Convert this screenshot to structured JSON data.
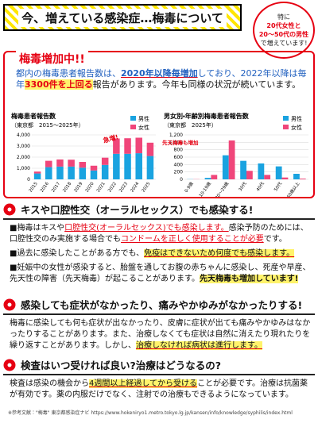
{
  "header": {
    "title": "今、増えている感染症…梅毒について",
    "badge": [
      "特に",
      "20代女性と",
      "20～50代の男性",
      "で増えています!"
    ]
  },
  "intro": {
    "heading": "梅毒増加中!!",
    "paragraph": [
      {
        "text": "都内の梅毒患者報告数は、",
        "mark": "blue"
      },
      {
        "text": "2020年以降毎増加",
        "mark": "blue b ul"
      },
      {
        "text": "しており、2022年以降は毎年",
        "mark": "blue"
      },
      {
        "text": "3300件を上回る",
        "mark": "red b hl"
      },
      {
        "text": "報告があります。"
      },
      {
        "text": "今年も同様の状況が続いています。"
      }
    ]
  },
  "chart_data": [
    {
      "type": "bar",
      "stacked": true,
      "title": "梅毒患者報告数",
      "subtitle": "（東京都　2015～2025年）",
      "categories": [
        "2015",
        "2016",
        "2017",
        "2018",
        "2019",
        "2020",
        "2021",
        "2022",
        "2023",
        "2024",
        "2025"
      ],
      "series": [
        {
          "name": "男性",
          "color": "#1aa3e0",
          "values": [
            530,
            1100,
            1150,
            1150,
            1050,
            800,
            1300,
            2300,
            2300,
            2350,
            2100
          ]
        },
        {
          "name": "女性",
          "color": "#f0467a",
          "values": [
            170,
            570,
            640,
            620,
            520,
            430,
            650,
            1380,
            1400,
            1400,
            1200
          ]
        }
      ],
      "ylim": [
        0,
        4000
      ],
      "yticks": [
        0,
        {
          "value": 1000,
          "label": "1,000"
        },
        {
          "value": 2000,
          "label": "2,000"
        },
        {
          "value": 3000,
          "label": "3,000"
        },
        {
          "value": 4000,
          "label": "4,000"
        }
      ],
      "grid": true,
      "legend": "upper right",
      "annotation": "急増!"
    },
    {
      "type": "bar",
      "stacked": false,
      "title": "男女別・年齢別梅毒患者報告数",
      "subtitle": "（東京都　2025年）",
      "categories": [
        "0-9歳",
        "10-19歳",
        "20～29歳",
        "30代",
        "40代",
        "50代",
        "60歳以上"
      ],
      "series": [
        {
          "name": "男性",
          "color": "#1aa3e0",
          "values": [
            5,
            40,
            650,
            500,
            430,
            350,
            150
          ]
        },
        {
          "name": "女性",
          "color": "#f0467a",
          "values": [
            5,
            120,
            1050,
            230,
            120,
            50,
            20
          ]
        }
      ],
      "ylim": [
        0,
        1200
      ],
      "yticks": [
        0,
        200,
        400,
        600,
        800,
        {
          "value": 1000,
          "label": "1,000"
        },
        {
          "value": 1200,
          "label": "1,200"
        }
      ],
      "grid": true,
      "legend": "upper right",
      "annotation": "先天梅毒も増加"
    }
  ],
  "sections": [
    {
      "heading": "キスや口腔性交（オーラルセックス）でも感染する!",
      "items": [
        [
          {
            "text": "梅毒はキスや"
          },
          {
            "text": "口腔性交(オーラルセックス)でも感染します。",
            "mark": "red ul"
          },
          {
            "text": "感染予防のためには、口腔性交のみ実施する場合でも"
          },
          {
            "text": "コンドームを正しく使用することが必要",
            "mark": "red ul"
          },
          {
            "text": "です。"
          }
        ],
        [
          {
            "text": "過去に感染したことがある方でも、"
          },
          {
            "text": "免疫はできないため何度でも感染します。",
            "mark": "hl ul"
          }
        ],
        [
          {
            "text": "妊娠中の女性が感染すると、胎盤を通してお腹の赤ちゃんに感染し、死産や早産、先天性の障害（先天梅毒）が起こることがあります。"
          },
          {
            "text": "先天梅毒も増加しています!",
            "mark": "b hl"
          }
        ]
      ]
    },
    {
      "heading": "感染しても症状がなかったり、痛みやかゆみがなかったりする!",
      "items": [
        [
          {
            "text": "梅毒に感染しても何も症状が出なかったり、皮膚に症状が出ても痛みやかゆみはなかったりすることがあります。また、治療しなくても症状は自然に消えたり現れたりを繰り返すことがあります。しかし、"
          },
          {
            "text": "治療しなければ病状は進行します。",
            "mark": "hl ul"
          }
        ]
      ]
    },
    {
      "heading": "検査はいつ受ければ良い?治療はどうなるの?",
      "items": [
        [
          {
            "text": "検査は感染の機会から"
          },
          {
            "text": "4週間以上経過してから受ける",
            "mark": "hl ul"
          },
          {
            "text": "ことが必要です。治療は抗菌薬が有効です。薬の内服だけでなく、注射での治療もできるようになっています。"
          }
        ]
      ]
    }
  ],
  "reference": "※参考文献：\"梅毒\" 東京都感染症ナビ https://www.hokeniryo1.metro.tokyo.lg.jp/kansen/info/knowledge/syphilis/index.html"
}
